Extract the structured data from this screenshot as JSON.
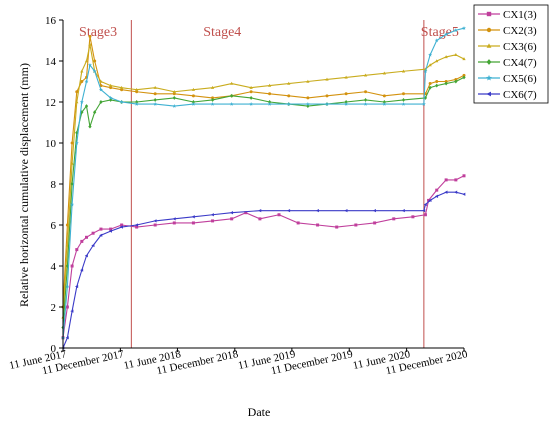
{
  "chart_data": {
    "type": "line",
    "title": "",
    "xlabel": "Date",
    "ylabel": "Relative horizontal cumulative displacement (mm)",
    "x_start": "2017-06-11",
    "x_end": "2020-12-11",
    "xtick_labels": [
      "11 June 2017",
      "11 December 2017",
      "11 June 2018",
      "11 December 2018",
      "11 June 2019",
      "11 December 2019",
      "11 June 2020",
      "11 December 2020"
    ],
    "xtick_dates": [
      "2017-06-11",
      "2017-12-11",
      "2018-06-11",
      "2018-12-11",
      "2019-06-11",
      "2019-12-11",
      "2020-06-11",
      "2020-12-11"
    ],
    "ylim": [
      0,
      16
    ],
    "yticks": [
      0,
      2,
      4,
      6,
      8,
      10,
      12,
      14,
      16
    ],
    "grid": false,
    "legend_position": "right",
    "stage_lines": [
      {
        "date": "2018-01-15"
      },
      {
        "date": "2020-08-05"
      }
    ],
    "stage_labels": [
      {
        "label": "Stage3",
        "date": "2017-10-01"
      },
      {
        "label": "Stage4",
        "date": "2018-11-01"
      },
      {
        "label": "Stage5",
        "date": "2020-09-25"
      }
    ],
    "stage_color": "#c0504d",
    "series": [
      {
        "name": "CX1(3)",
        "color": "#c03f9c",
        "marker": "square",
        "x": [
          "2017-06-11",
          "2017-06-25",
          "2017-07-10",
          "2017-07-25",
          "2017-08-10",
          "2017-08-25",
          "2017-09-15",
          "2017-10-10",
          "2017-11-10",
          "2017-12-15",
          "2018-02-01",
          "2018-04-01",
          "2018-06-01",
          "2018-08-01",
          "2018-10-01",
          "2018-12-01",
          "2019-01-15",
          "2019-03-01",
          "2019-05-01",
          "2019-07-01",
          "2019-09-01",
          "2019-11-01",
          "2020-01-01",
          "2020-03-01",
          "2020-05-01",
          "2020-07-01",
          "2020-08-10",
          "2020-08-20",
          "2020-09-15",
          "2020-10-15",
          "2020-11-15",
          "2020-12-11"
        ],
        "values": [
          0.5,
          2.0,
          4.0,
          4.8,
          5.2,
          5.4,
          5.6,
          5.8,
          5.8,
          6.0,
          5.9,
          6.0,
          6.1,
          6.1,
          6.2,
          6.3,
          6.6,
          6.3,
          6.5,
          6.1,
          6.0,
          5.9,
          6.0,
          6.1,
          6.3,
          6.4,
          6.5,
          7.2,
          7.7,
          8.2,
          8.2,
          8.4
        ]
      },
      {
        "name": "CX2(3)",
        "color": "#d3920f",
        "marker": "circle",
        "x": [
          "2017-06-11",
          "2017-06-25",
          "2017-07-10",
          "2017-07-25",
          "2017-08-10",
          "2017-08-25",
          "2017-09-05",
          "2017-09-20",
          "2017-10-10",
          "2017-11-10",
          "2017-12-15",
          "2018-02-01",
          "2018-04-01",
          "2018-06-01",
          "2018-08-01",
          "2018-10-01",
          "2018-12-01",
          "2019-02-01",
          "2019-04-01",
          "2019-06-01",
          "2019-08-01",
          "2019-10-01",
          "2019-12-01",
          "2020-02-01",
          "2020-04-01",
          "2020-06-01",
          "2020-08-10",
          "2020-08-25",
          "2020-09-15",
          "2020-10-15",
          "2020-11-15",
          "2020-12-11"
        ],
        "values": [
          2.0,
          6.0,
          10.0,
          12.5,
          13.0,
          13.2,
          15.2,
          14.0,
          12.8,
          12.7,
          12.6,
          12.5,
          12.4,
          12.4,
          12.3,
          12.2,
          12.3,
          12.5,
          12.4,
          12.3,
          12.2,
          12.3,
          12.4,
          12.5,
          12.3,
          12.4,
          12.4,
          12.9,
          13.0,
          13.0,
          13.1,
          13.3
        ]
      },
      {
        "name": "CX3(6)",
        "color": "#c9ac1e",
        "marker": "triangle",
        "x": [
          "2017-06-11",
          "2017-06-25",
          "2017-07-10",
          "2017-07-25",
          "2017-08-10",
          "2017-08-25",
          "2017-09-05",
          "2017-09-20",
          "2017-10-10",
          "2017-11-10",
          "2017-12-15",
          "2018-02-01",
          "2018-04-01",
          "2018-06-01",
          "2018-08-01",
          "2018-10-01",
          "2018-12-01",
          "2019-02-01",
          "2019-04-01",
          "2019-06-01",
          "2019-08-01",
          "2019-10-01",
          "2019-12-01",
          "2020-02-01",
          "2020-04-01",
          "2020-06-01",
          "2020-08-10",
          "2020-08-25",
          "2020-09-15",
          "2020-10-15",
          "2020-11-15",
          "2020-12-11"
        ],
        "values": [
          1.5,
          5.0,
          9.0,
          12.0,
          13.5,
          14.0,
          14.8,
          13.5,
          13.0,
          12.8,
          12.7,
          12.6,
          12.7,
          12.5,
          12.6,
          12.7,
          12.9,
          12.7,
          12.8,
          12.9,
          13.0,
          13.1,
          13.2,
          13.3,
          13.4,
          13.5,
          13.6,
          13.8,
          14.0,
          14.2,
          14.3,
          14.1
        ]
      },
      {
        "name": "CX4(7)",
        "color": "#43a535",
        "marker": "diamond",
        "x": [
          "2017-06-11",
          "2017-06-25",
          "2017-07-10",
          "2017-07-25",
          "2017-08-10",
          "2017-08-25",
          "2017-09-05",
          "2017-09-20",
          "2017-10-10",
          "2017-11-10",
          "2017-12-15",
          "2018-02-01",
          "2018-04-01",
          "2018-06-01",
          "2018-08-01",
          "2018-10-01",
          "2018-12-01",
          "2019-02-01",
          "2019-04-01",
          "2019-06-01",
          "2019-08-01",
          "2019-10-01",
          "2019-12-01",
          "2020-02-01",
          "2020-04-01",
          "2020-06-01",
          "2020-08-10",
          "2020-08-25",
          "2020-09-15",
          "2020-10-15",
          "2020-11-15",
          "2020-12-11"
        ],
        "values": [
          1.0,
          4.0,
          8.0,
          10.5,
          11.5,
          11.8,
          10.8,
          11.5,
          12.0,
          12.1,
          12.0,
          12.0,
          12.1,
          12.2,
          12.0,
          12.1,
          12.3,
          12.2,
          12.0,
          11.9,
          11.8,
          11.9,
          12.0,
          12.1,
          12.0,
          12.1,
          12.2,
          12.7,
          12.8,
          12.9,
          13.0,
          13.2
        ]
      },
      {
        "name": "CX5(6)",
        "color": "#3fb1d2",
        "marker": "star",
        "x": [
          "2017-06-11",
          "2017-06-25",
          "2017-07-10",
          "2017-07-25",
          "2017-08-10",
          "2017-08-25",
          "2017-09-05",
          "2017-09-20",
          "2017-10-10",
          "2017-11-10",
          "2017-12-15",
          "2018-02-01",
          "2018-04-01",
          "2018-06-01",
          "2018-08-01",
          "2018-10-01",
          "2018-12-01",
          "2019-02-01",
          "2019-04-01",
          "2019-06-01",
          "2019-08-01",
          "2019-10-01",
          "2019-12-01",
          "2020-02-01",
          "2020-04-01",
          "2020-06-01",
          "2020-08-05",
          "2020-08-10",
          "2020-08-25",
          "2020-09-15",
          "2020-10-15",
          "2020-11-15",
          "2020-12-11"
        ],
        "values": [
          0.5,
          3.0,
          7.0,
          10.0,
          12.0,
          13.0,
          13.8,
          13.5,
          12.6,
          12.2,
          12.0,
          11.9,
          11.9,
          11.8,
          11.9,
          11.9,
          11.9,
          11.9,
          11.9,
          11.9,
          11.9,
          11.9,
          11.9,
          11.9,
          11.9,
          11.9,
          11.9,
          13.5,
          14.3,
          15.0,
          15.3,
          15.5,
          15.6
        ]
      },
      {
        "name": "CX6(7)",
        "color": "#3b3bc8",
        "marker": "triangle-left",
        "x": [
          "2017-06-11",
          "2017-06-25",
          "2017-07-10",
          "2017-07-25",
          "2017-08-10",
          "2017-08-25",
          "2017-09-15",
          "2017-10-10",
          "2017-11-10",
          "2017-12-15",
          "2018-02-01",
          "2018-04-01",
          "2018-06-01",
          "2018-08-01",
          "2018-10-01",
          "2018-12-01",
          "2019-03-01",
          "2019-06-01",
          "2019-09-01",
          "2019-12-01",
          "2020-03-01",
          "2020-06-01",
          "2020-08-05",
          "2020-08-10",
          "2020-08-25",
          "2020-09-15",
          "2020-10-15",
          "2020-11-15",
          "2020-12-11"
        ],
        "values": [
          0.0,
          0.5,
          1.8,
          3.0,
          3.8,
          4.5,
          5.0,
          5.5,
          5.7,
          5.9,
          6.0,
          6.2,
          6.3,
          6.4,
          6.5,
          6.6,
          6.7,
          6.7,
          6.7,
          6.7,
          6.7,
          6.7,
          6.7,
          7.0,
          7.2,
          7.4,
          7.6,
          7.6,
          7.5
        ]
      }
    ]
  }
}
